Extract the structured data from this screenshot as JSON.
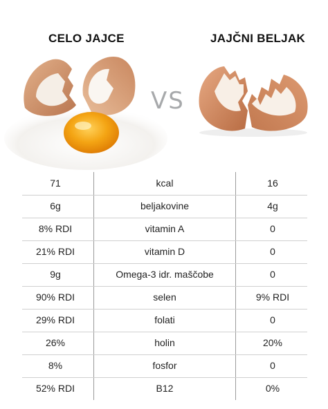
{
  "header": {
    "left_title": "CELO JAJCE",
    "vs": "VS",
    "right_title": "JAJČNI BELJAK"
  },
  "images": {
    "left": "cracked-whole-egg-with-yolk",
    "right": "broken-egg-shell-halves"
  },
  "table": {
    "rows": [
      {
        "left": "71",
        "nutrient": "kcal",
        "right": "16"
      },
      {
        "left": "6g",
        "nutrient": "beljakovine",
        "right": "4g"
      },
      {
        "left": "8% RDI",
        "nutrient": "vitamin A",
        "right": "0"
      },
      {
        "left": "21% RDI",
        "nutrient": "vitamin D",
        "right": "0"
      },
      {
        "left": "9g",
        "nutrient": "Omega-3 idr. maščobe",
        "right": "0"
      },
      {
        "left": "90% RDI",
        "nutrient": "selen",
        "right": "9% RDI"
      },
      {
        "left": "29% RDI",
        "nutrient": "folati",
        "right": "0"
      },
      {
        "left": "26%",
        "nutrient": "holin",
        "right": "20%"
      },
      {
        "left": "8%",
        "nutrient": "fosfor",
        "right": "0"
      },
      {
        "left": "52% RDI",
        "nutrient": "B12",
        "right": "0%"
      }
    ]
  }
}
